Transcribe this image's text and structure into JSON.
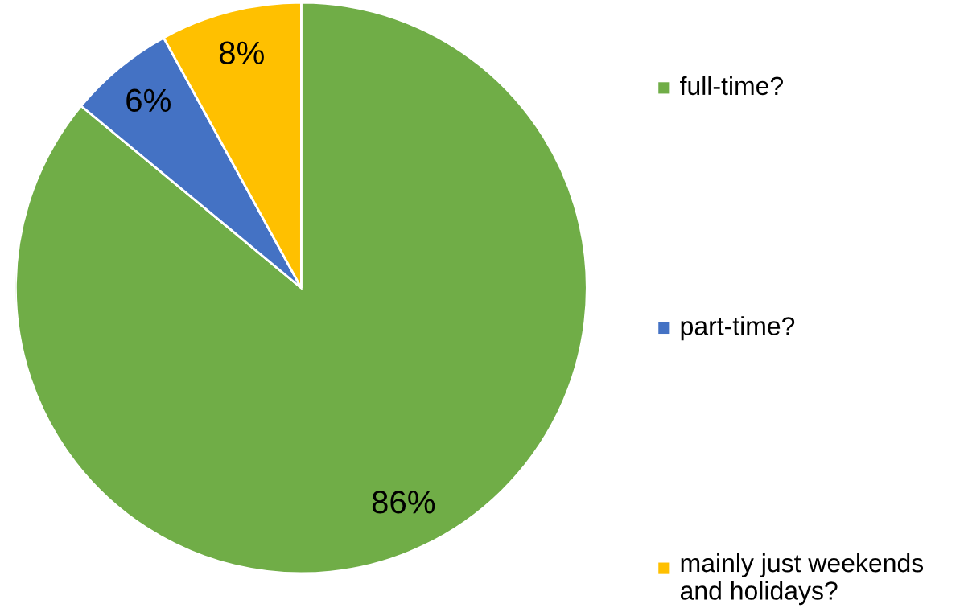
{
  "chart_data": {
    "type": "pie",
    "categories": [
      "full-time?",
      "part-time?",
      "mainly just weekends and holidays?"
    ],
    "values": [
      86,
      6,
      8
    ],
    "colors": [
      "#70ad47",
      "#4472c4",
      "#ffc000"
    ],
    "value_labels": [
      "86%",
      "6%",
      "8%"
    ],
    "legend": "right"
  }
}
